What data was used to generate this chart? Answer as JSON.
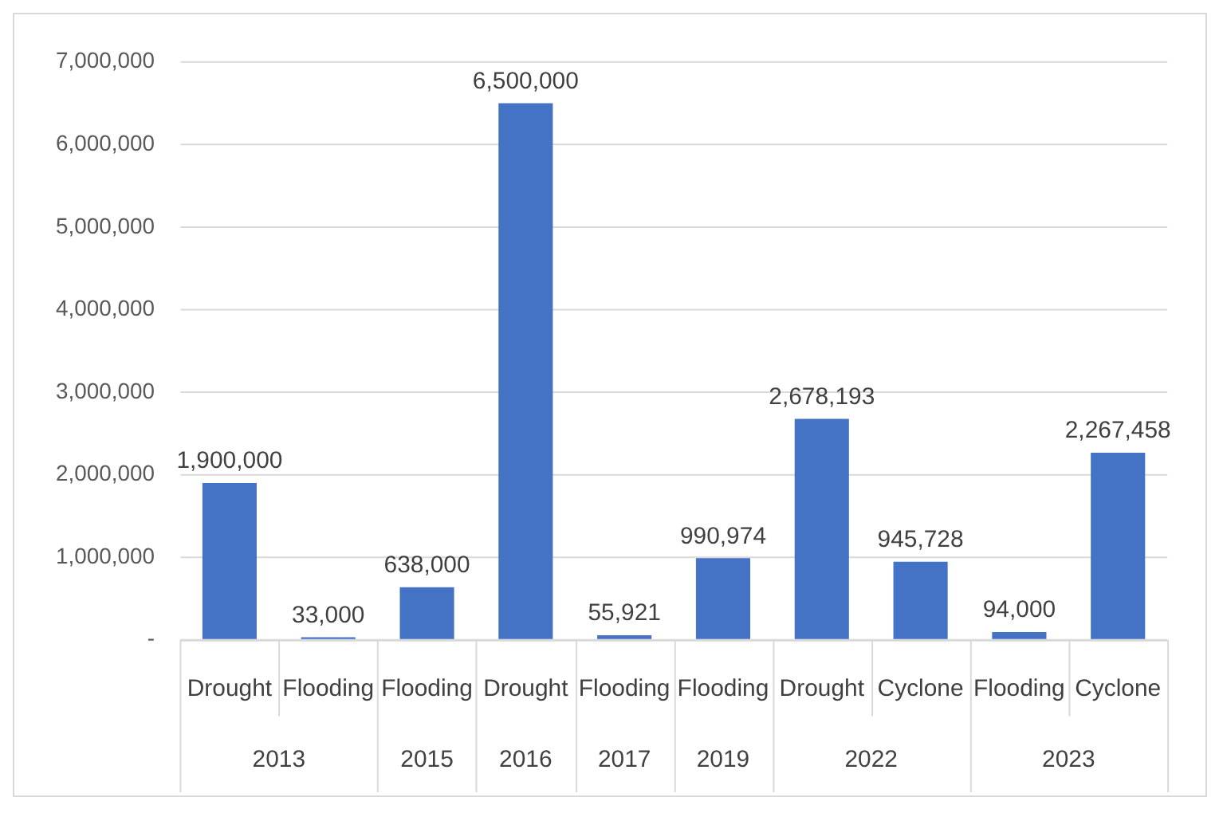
{
  "chart_data": {
    "type": "bar",
    "categories": [
      "Drought",
      "Flooding",
      "Flooding",
      "Drought",
      "Flooding",
      "Flooding",
      "Drought",
      "Cyclone",
      "Flooding",
      "Cyclone"
    ],
    "values": [
      1900000,
      33000,
      638000,
      6500000,
      55921,
      990974,
      2678193,
      945728,
      94000,
      2267458
    ],
    "value_labels": [
      "1,900,000",
      "33,000",
      "638,000",
      "6,500,000",
      "55,921",
      "990,974",
      "2,678,193",
      "945,728",
      "94,000",
      "2,267,458"
    ],
    "color": "#4472c4",
    "ylim": [
      0,
      7000000
    ],
    "yticks": [
      {
        "value": 0,
        "label": "-"
      },
      {
        "value": 1000000,
        "label": "1,000,000"
      },
      {
        "value": 2000000,
        "label": "2,000,000"
      },
      {
        "value": 3000000,
        "label": "3,000,000"
      },
      {
        "value": 4000000,
        "label": "4,000,000"
      },
      {
        "value": 5000000,
        "label": "5,000,000"
      },
      {
        "value": 6000000,
        "label": "6,000,000"
      },
      {
        "value": 7000000,
        "label": "7,000,000"
      }
    ],
    "annotations": [
      "2013",
      "2015",
      "2016",
      "2017",
      "2019",
      "2022",
      "2023"
    ],
    "grid": "y",
    "legend": false
  }
}
